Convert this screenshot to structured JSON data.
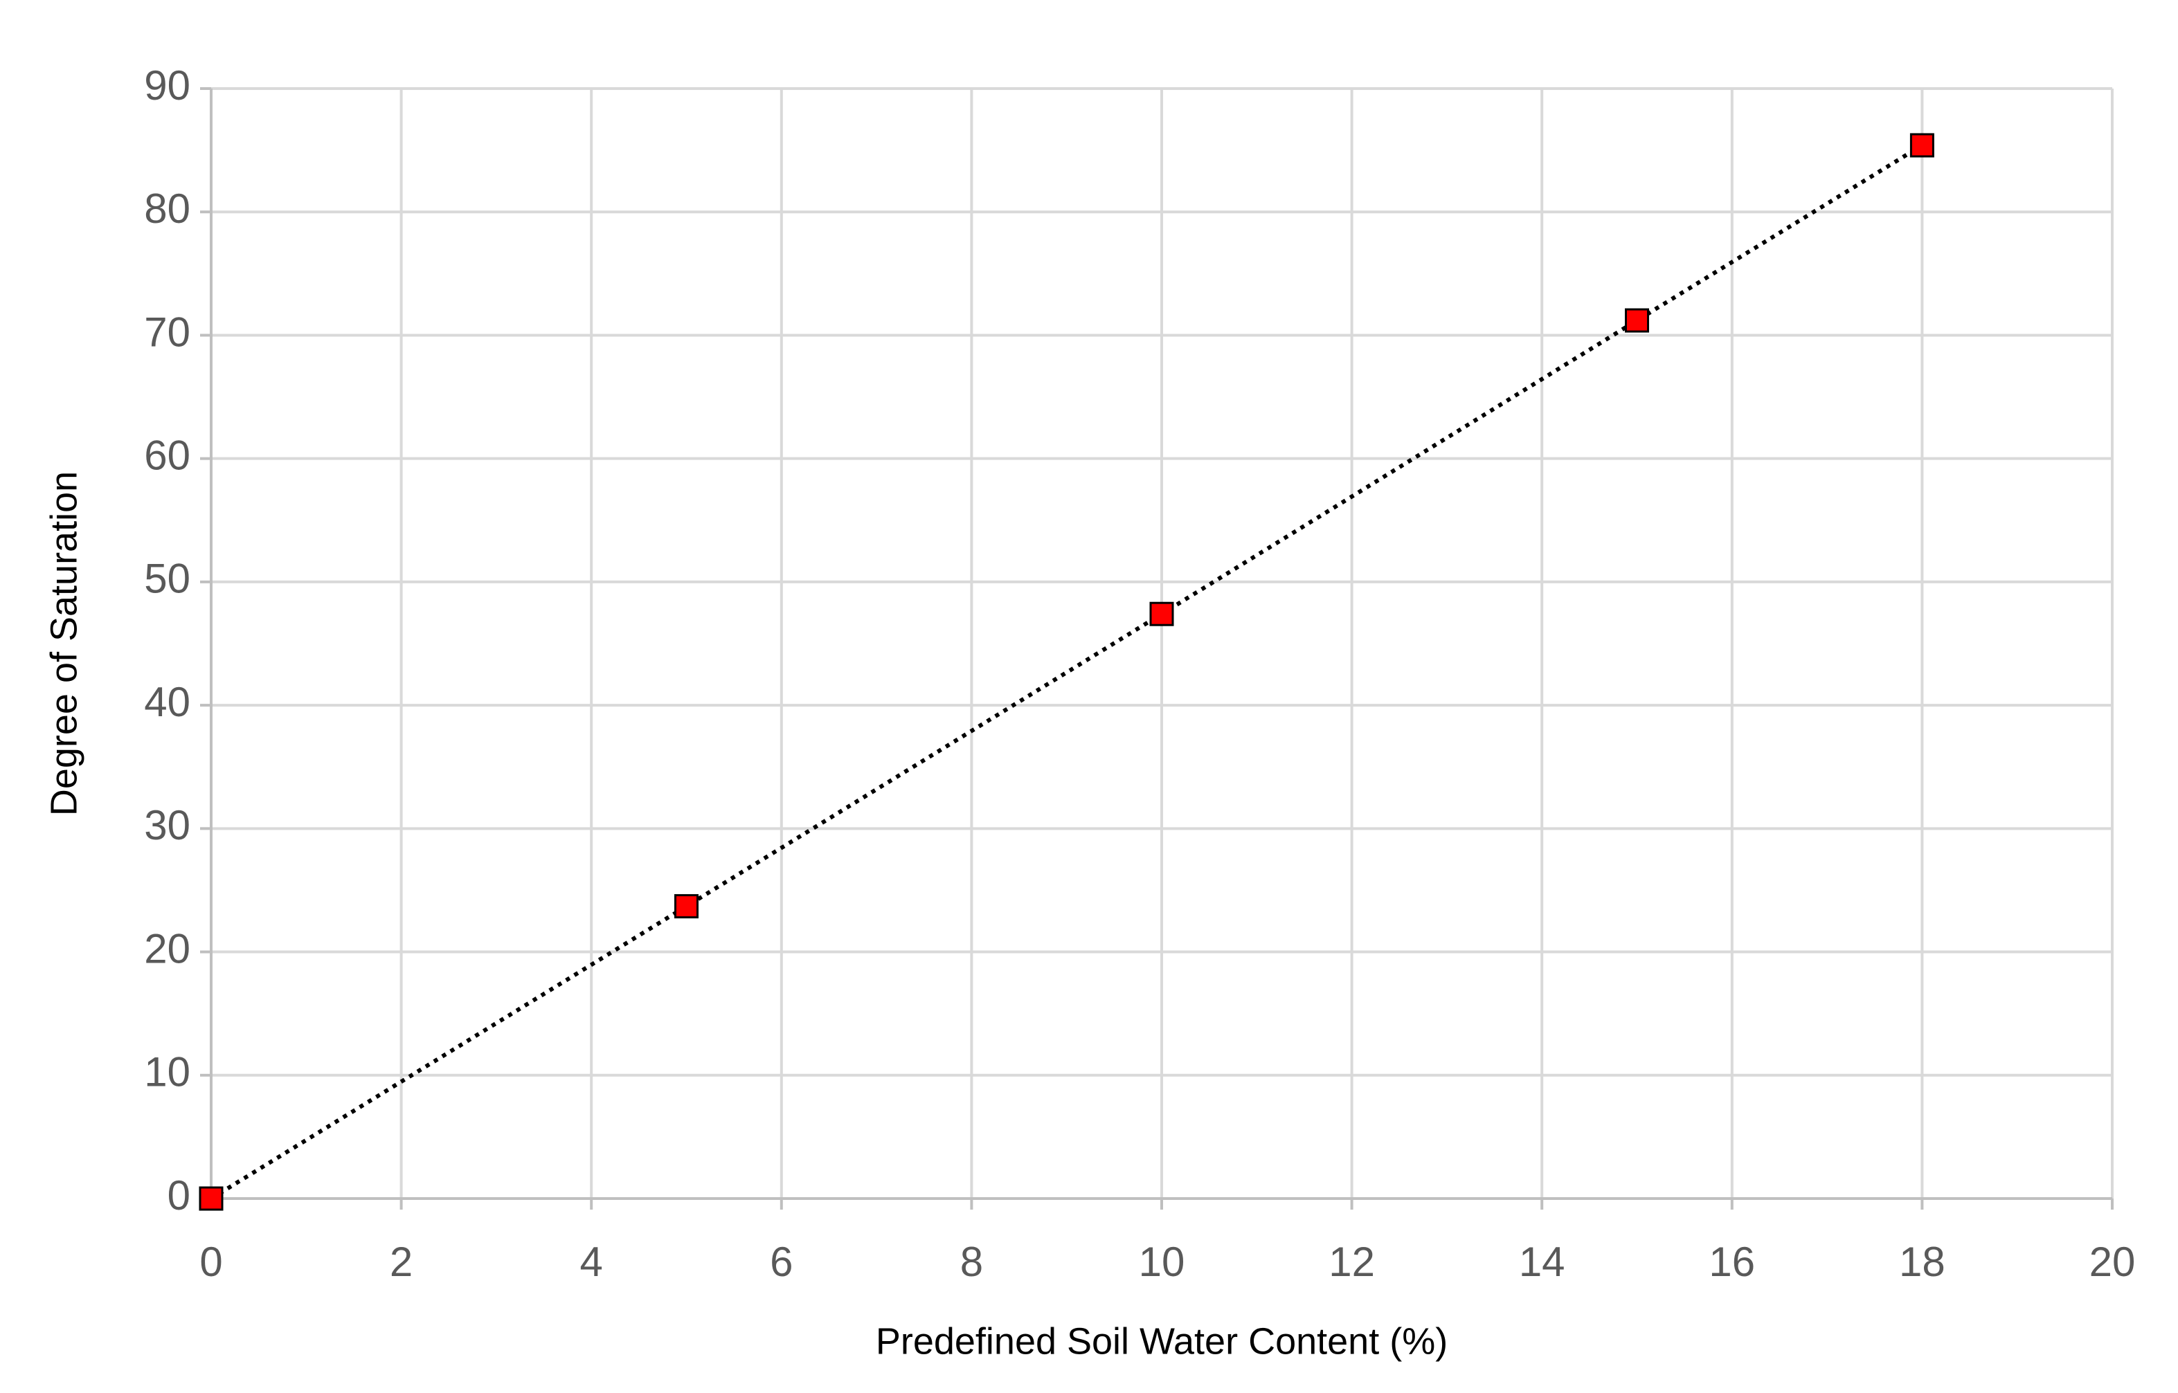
{
  "chart_data": {
    "type": "scatter",
    "x_label": "Predefined Soil Water Content (%)",
    "y_label": "Degree of Saturation",
    "series": [
      {
        "color": "#ff0000",
        "x": [
          0,
          5,
          10,
          15,
          18
        ],
        "values": [
          0,
          23.7,
          47.4,
          71.2,
          85.4
        ]
      }
    ],
    "xlim": [
      0,
      20
    ],
    "xticks": [
      0,
      2,
      4,
      6,
      8,
      10,
      12,
      14,
      16,
      18,
      20
    ],
    "ylim": [
      0,
      90
    ],
    "yticks": [
      0,
      10,
      20,
      30,
      40,
      50,
      60,
      70,
      80,
      90
    ],
    "grid": true
  }
}
